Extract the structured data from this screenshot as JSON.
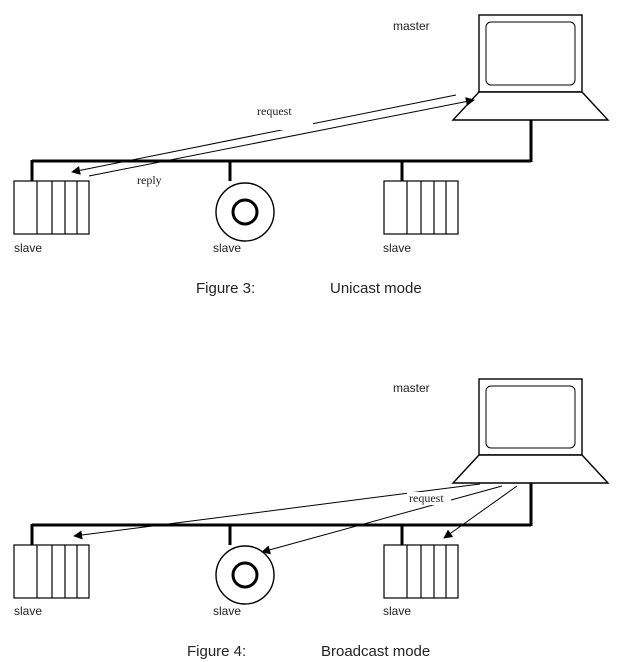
{
  "figure3": {
    "master_label": "master",
    "slave_labels": [
      "slave",
      "slave",
      "slave"
    ],
    "request_label": "request",
    "reply_label": "reply",
    "caption_number": "Figure 3:",
    "caption_title": "Unicast mode"
  },
  "figure4": {
    "master_label": "master",
    "slave_labels": [
      "slave",
      "slave",
      "slave"
    ],
    "request_label": "request",
    "caption_number": "Figure 4:",
    "caption_title": "Broadcast mode"
  },
  "colors": {
    "line": "#000000",
    "text": "#222222",
    "background": "#ffffff"
  }
}
